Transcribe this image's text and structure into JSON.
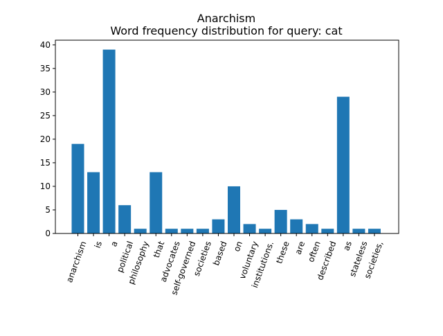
{
  "chart_data": {
    "type": "bar",
    "title": "Anarchism",
    "subtitle": "Word frequency distribution for query: cat",
    "xlabel": "",
    "ylabel": "",
    "categories": [
      "anarchism",
      "is",
      "a",
      "political",
      "philosophy",
      "that",
      "advocates",
      "self-governed",
      "societies",
      "based",
      "on",
      "voluntary",
      "institutions.",
      "these",
      "are",
      "often",
      "described",
      "as",
      "stateless",
      "societies,"
    ],
    "values": [
      19,
      13,
      39,
      6,
      1,
      13,
      1,
      1,
      1,
      3,
      10,
      2,
      1,
      5,
      3,
      2,
      1,
      29,
      1,
      1
    ],
    "ylim": [
      0,
      41
    ],
    "yticks": [
      0,
      5,
      10,
      15,
      20,
      25,
      30,
      35,
      40
    ],
    "bar_color": "#1f77b4",
    "grid": false,
    "legend": "none"
  }
}
